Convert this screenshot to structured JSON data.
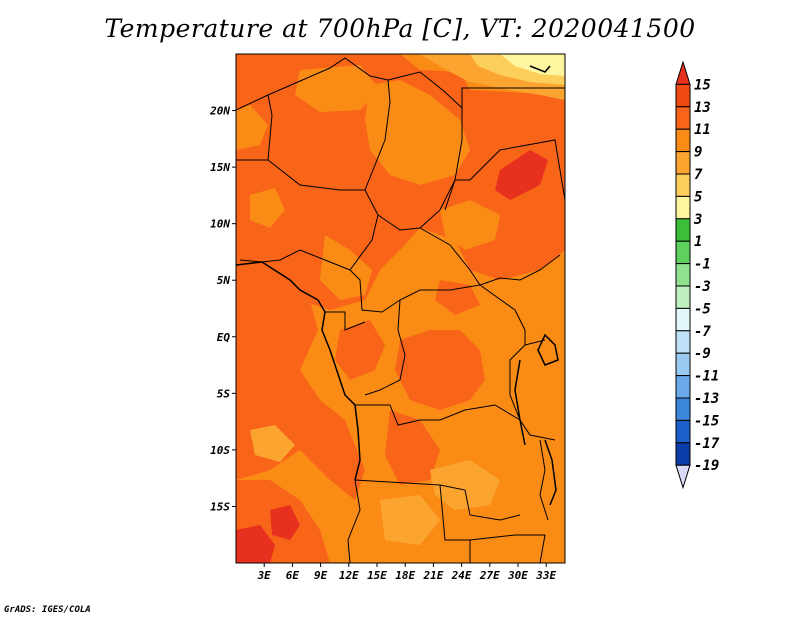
{
  "title": "Temperature at 700hPa [C], VT: 2020041500",
  "credit": "GrADS: IGES/COLA",
  "map": {
    "lon_range": [
      0,
      35
    ],
    "lat_range": [
      -20,
      25
    ],
    "y_ticks": [
      {
        "label": "20N",
        "lat": 20
      },
      {
        "label": "15N",
        "lat": 15
      },
      {
        "label": "10N",
        "lat": 10
      },
      {
        "label": "5N",
        "lat": 5
      },
      {
        "label": "EQ",
        "lat": 0
      },
      {
        "label": "5S",
        "lat": -5
      },
      {
        "label": "10S",
        "lat": -10
      },
      {
        "label": "15S",
        "lat": -15
      }
    ],
    "x_ticks": [
      {
        "label": "3E",
        "lon": 3
      },
      {
        "label": "6E",
        "lon": 6
      },
      {
        "label": "9E",
        "lon": 9
      },
      {
        "label": "12E",
        "lon": 12
      },
      {
        "label": "15E",
        "lon": 15
      },
      {
        "label": "18E",
        "lon": 18
      },
      {
        "label": "21E",
        "lon": 21
      },
      {
        "label": "24E",
        "lon": 24
      },
      {
        "label": "27E",
        "lon": 27
      },
      {
        "label": "30E",
        "lon": 30
      },
      {
        "label": "33E",
        "lon": 33
      }
    ]
  },
  "colorbar": {
    "labels": [
      "15",
      "13",
      "11",
      "9",
      "7",
      "5",
      "3",
      "1",
      "-1",
      "-3",
      "-5",
      "-7",
      "-9",
      "-11",
      "-13",
      "-15",
      "-17",
      "-19"
    ],
    "colors": [
      "#e8301e",
      "#f04a12",
      "#f86418",
      "#fa8c16",
      "#fba530",
      "#fccf5c",
      "#fdf5a0",
      "#3bbf3b",
      "#5ed05e",
      "#90e290",
      "#c0f0c0",
      "#e2f7fa",
      "#c0e2f8",
      "#98caf2",
      "#6aaaea",
      "#3c86dc",
      "#1c60cc",
      "#0c3ca8",
      "#061a80",
      "#d8dcf8"
    ]
  }
}
